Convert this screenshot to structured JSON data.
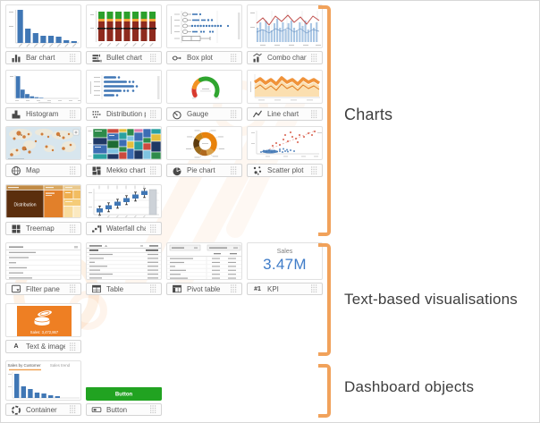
{
  "sections": [
    {
      "label": "Charts"
    },
    {
      "label": "Text-based visualisations"
    },
    {
      "label": "Dashboard objects"
    }
  ],
  "cards": [
    {
      "id": "bar-chart",
      "label": "Bar chart",
      "icon": "bar-chart-icon",
      "row": 0,
      "col": 0
    },
    {
      "id": "bullet-chart",
      "label": "Bullet chart",
      "icon": "bullet-chart-icon",
      "row": 0,
      "col": 1
    },
    {
      "id": "box-plot",
      "label": "Box plot",
      "icon": "box-plot-icon",
      "row": 0,
      "col": 2
    },
    {
      "id": "combo-chart",
      "label": "Combo chart",
      "icon": "combo-chart-icon",
      "row": 0,
      "col": 3
    },
    {
      "id": "histogram",
      "label": "Histogram",
      "icon": "histogram-icon",
      "row": 1,
      "col": 0
    },
    {
      "id": "distribution-plot",
      "label": "Distribution plot",
      "icon": "distribution-plot-icon",
      "row": 1,
      "col": 1
    },
    {
      "id": "gauge",
      "label": "Gauge",
      "icon": "gauge-icon",
      "row": 1,
      "col": 2
    },
    {
      "id": "line-chart",
      "label": "Line chart",
      "icon": "line-chart-icon",
      "row": 1,
      "col": 3
    },
    {
      "id": "map",
      "label": "Map",
      "icon": "map-icon",
      "row": 2,
      "col": 0
    },
    {
      "id": "mekko-chart",
      "label": "Mekko chart",
      "icon": "mekko-chart-icon",
      "row": 2,
      "col": 1
    },
    {
      "id": "pie-chart",
      "label": "Pie chart",
      "icon": "pie-chart-icon",
      "row": 2,
      "col": 2
    },
    {
      "id": "scatter-plot",
      "label": "Scatter plot",
      "icon": "scatter-plot-icon",
      "row": 2,
      "col": 3
    },
    {
      "id": "treemap",
      "label": "Treemap",
      "icon": "treemap-icon",
      "row": 3,
      "col": 0,
      "thumb_text": "Distribution"
    },
    {
      "id": "waterfall-chart",
      "label": "Waterfall chart",
      "icon": "waterfall-chart-icon",
      "row": 3,
      "col": 1
    },
    {
      "id": "filter-pane",
      "label": "Filter pane",
      "icon": "filter-pane-icon",
      "row": 4,
      "col": 0
    },
    {
      "id": "table",
      "label": "Table",
      "icon": "table-icon",
      "row": 4,
      "col": 1
    },
    {
      "id": "pivot-table",
      "label": "Pivot table",
      "icon": "pivot-table-icon",
      "row": 4,
      "col": 2
    },
    {
      "id": "kpi",
      "label": "KPI",
      "icon": "kpi-rank-icon",
      "icon_text": "#1",
      "row": 4,
      "col": 3,
      "thumb_title": "Sales",
      "thumb_value": "3.47M"
    },
    {
      "id": "text-image",
      "label": "Text & image",
      "icon": "text-image-icon",
      "icon_text": "A",
      "row": 5,
      "col": 0,
      "thumb_caption": "Sales: 3,472,867"
    },
    {
      "id": "container",
      "label": "Container",
      "icon": "container-icon",
      "row": 6,
      "col": 0,
      "tabs": [
        "Sales by Customer",
        "Sales trend"
      ]
    },
    {
      "id": "button",
      "label": "Button",
      "icon": "button-icon",
      "row": 6,
      "col": 1,
      "thumb_button_label": "Button"
    }
  ],
  "colors": {
    "qlik_blue": "#4077B5",
    "accent_orange": "#EE7F23",
    "bracket_orange": "#F1A25B",
    "kpi_value_blue": "#3F7CC8",
    "button_green": "#21A321"
  }
}
